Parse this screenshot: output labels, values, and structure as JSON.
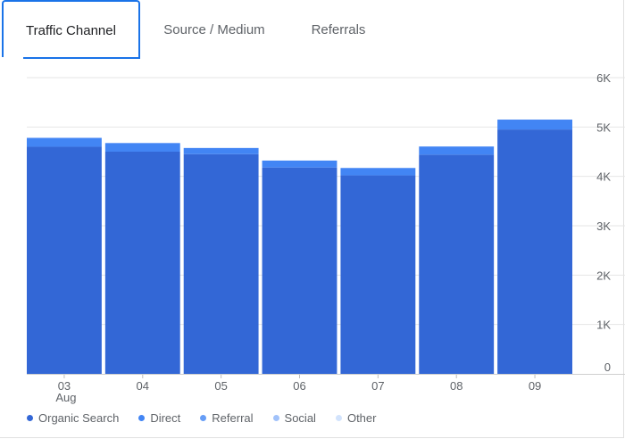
{
  "tabs": [
    {
      "label": "Traffic Channel",
      "active": true
    },
    {
      "label": "Source / Medium",
      "active": false
    },
    {
      "label": "Referrals",
      "active": false
    }
  ],
  "chart_data": {
    "type": "bar",
    "stacked": true,
    "categories": [
      "03",
      "04",
      "05",
      "06",
      "07",
      "08",
      "09"
    ],
    "category_sublabels": [
      "Aug",
      "",
      "",
      "",
      "",
      "",
      ""
    ],
    "ylim": [
      0,
      6000
    ],
    "yticks": [
      0,
      1000,
      2000,
      3000,
      4000,
      5000,
      6000
    ],
    "ytick_labels": [
      "0",
      "1K",
      "2K",
      "3K",
      "4K",
      "5K",
      "6K"
    ],
    "y_axis_position": "right",
    "grid": true,
    "legend_position": "bottom-left",
    "series": [
      {
        "name": "Organic Search",
        "color": "#3367d6",
        "values": [
          4600,
          4500,
          4450,
          4180,
          4020,
          4440,
          4950
        ]
      },
      {
        "name": "Direct",
        "color": "#4285f4",
        "values": [
          180,
          175,
          125,
          140,
          150,
          165,
          200
        ]
      },
      {
        "name": "Referral",
        "color": "#669df6",
        "values": [
          0,
          0,
          0,
          0,
          0,
          0,
          0
        ]
      },
      {
        "name": "Social",
        "color": "#a1c2fa",
        "values": [
          0,
          0,
          0,
          0,
          0,
          0,
          0
        ]
      },
      {
        "name": "Other",
        "color": "#d2e3fc",
        "values": [
          0,
          0,
          0,
          0,
          0,
          0,
          0
        ]
      }
    ]
  }
}
